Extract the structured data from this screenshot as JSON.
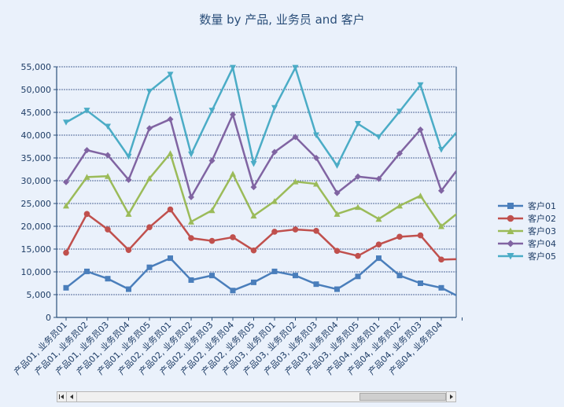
{
  "chart_data": {
    "type": "line",
    "title": "数量 by 产品, 业务员 and 客户",
    "xlabel": "",
    "ylabel": "",
    "ylim": [
      0,
      55000
    ],
    "yticks": [
      0,
      5000,
      10000,
      15000,
      20000,
      25000,
      30000,
      35000,
      40000,
      45000,
      50000,
      55000
    ],
    "ytick_labels": [
      "0",
      "5,000",
      "10,000",
      "15,000",
      "20,000",
      "25,000",
      "30,000",
      "35,000",
      "40,000",
      "45,000",
      "50,000",
      "55,000"
    ],
    "grid": true,
    "legend_position": "right",
    "categories": [
      "产品01, 业务员01",
      "产品01, 业务员02",
      "产品01, 业务员03",
      "产品01, 业务员04",
      "产品01, 业务员05",
      "产品02, 业务员01",
      "产品02, 业务员02",
      "产品02, 业务员03",
      "产品02, 业务员04",
      "产品02, 业务员05",
      "产品03, 业务员01",
      "产品03, 业务员02",
      "产品03, 业务员03",
      "产品03, 业务员04",
      "产品03, 业务员05",
      "产品04, 业务员01",
      "产品04, 业务员02",
      "产品04, 业务员03",
      "产品04, 业务员04",
      ""
    ],
    "series": [
      {
        "name": "客户01",
        "color": "#4a7ebb",
        "marker": "square",
        "values": [
          6500,
          10100,
          8500,
          6200,
          11000,
          13000,
          8200,
          9200,
          5900,
          7700,
          10100,
          9200,
          7300,
          6200,
          9000,
          13000,
          9200,
          7500,
          6500,
          4200
        ]
      },
      {
        "name": "客户02",
        "color": "#c0504d",
        "marker": "circle",
        "values": [
          14200,
          22700,
          19300,
          14800,
          19800,
          23700,
          17400,
          16800,
          17600,
          14700,
          18800,
          19300,
          19000,
          14600,
          13500,
          16000,
          17700,
          18000,
          12700,
          12800
        ]
      },
      {
        "name": "客户03",
        "color": "#9bbb59",
        "marker": "triangle",
        "values": [
          24500,
          30800,
          31000,
          22700,
          30500,
          36000,
          21000,
          23500,
          31500,
          22300,
          25500,
          29800,
          29300,
          22700,
          24200,
          21600,
          24500,
          26700,
          20000,
          23700
        ]
      },
      {
        "name": "客户04",
        "color": "#8064a2",
        "marker": "diamond",
        "values": [
          29700,
          36700,
          35600,
          30200,
          41500,
          43500,
          26400,
          34400,
          44500,
          28600,
          36300,
          39600,
          35000,
          27300,
          30900,
          30400,
          36000,
          41200,
          27800,
          33800
        ]
      },
      {
        "name": "客户05",
        "color": "#4bacc6",
        "marker": "triangle-down",
        "values": [
          42800,
          45400,
          41900,
          35300,
          49600,
          53300,
          35800,
          45400,
          54800,
          33700,
          46000,
          54800,
          40000,
          33300,
          42500,
          39600,
          45200,
          51000,
          36800,
          42000
        ]
      }
    ]
  }
}
